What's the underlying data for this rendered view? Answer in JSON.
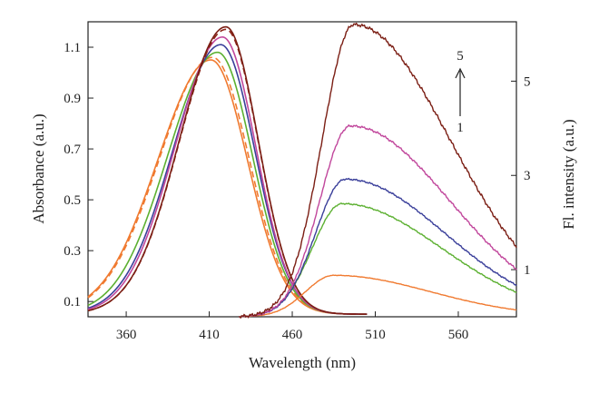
{
  "chart_data": {
    "type": "line",
    "xlabel": "Wavelength (nm)",
    "ylabel_left": "Absorbance (a.u.)",
    "ylabel_right": "Fl. intensity (a.u.)",
    "xlim": [
      337,
      595
    ],
    "ylim_left": [
      0.04,
      1.2
    ],
    "ylim_right": [
      0,
      6.26
    ],
    "x_ticks": [
      360,
      410,
      460,
      510,
      560
    ],
    "left_ticks": [
      0.1,
      0.3,
      0.5,
      0.7,
      0.9,
      1.1
    ],
    "right_ticks": [
      1,
      3,
      5
    ],
    "grid": false,
    "legend": "none",
    "annotation": {
      "top": "5",
      "bottom": "1"
    },
    "absorbance_series": [
      {
        "color": "#f07a30",
        "dash": false,
        "peak_x": 411,
        "peak_y": 1.0,
        "sigma_left": 32,
        "sigma_right": 22
      },
      {
        "color": "#f07a30",
        "dash": true,
        "peak_x": 412,
        "peak_y": 1.01,
        "sigma_left": 32,
        "sigma_right": 22
      },
      {
        "color": "#5cb031",
        "dash": false,
        "peak_x": 415,
        "peak_y": 1.03,
        "sigma_left": 30,
        "sigma_right": 21
      },
      {
        "color": "#3a3f9a",
        "dash": false,
        "peak_x": 417,
        "peak_y": 1.06,
        "sigma_left": 29,
        "sigma_right": 20.5
      },
      {
        "color": "#c1479c",
        "dash": false,
        "peak_x": 418,
        "peak_y": 1.09,
        "sigma_left": 28.5,
        "sigma_right": 20
      },
      {
        "color": "#8c2418",
        "dash": true,
        "peak_x": 420,
        "peak_y": 1.12,
        "sigma_left": 28,
        "sigma_right": 19.5
      },
      {
        "color": "#7b1e14",
        "dash": false,
        "peak_x": 420,
        "peak_y": 1.13,
        "sigma_left": 28,
        "sigma_right": 19.5
      }
    ],
    "fluorescence_series": [
      {
        "color": "#f07a30",
        "peak_x": 485,
        "peak_y": 0.88,
        "sigma_left": 17,
        "sigma_right": 58
      },
      {
        "color": "#5cb031",
        "peak_x": 490,
        "peak_y": 2.4,
        "sigma_left": 18,
        "sigma_right": 60
      },
      {
        "color": "#3a3f9a",
        "peak_x": 492,
        "peak_y": 2.92,
        "sigma_left": 18,
        "sigma_right": 60
      },
      {
        "color": "#c1479c",
        "peak_x": 495,
        "peak_y": 4.05,
        "sigma_left": 18.5,
        "sigma_right": 60
      },
      {
        "color": "#7b1e14",
        "peak_x": 497,
        "peak_y": 6.2,
        "sigma_left": 19,
        "sigma_right": 58
      }
    ]
  }
}
